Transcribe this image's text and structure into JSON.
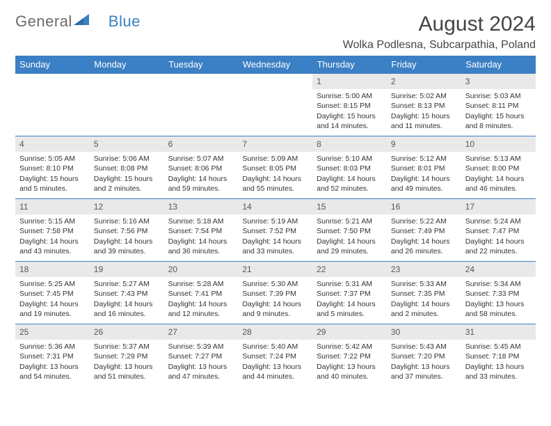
{
  "logo": {
    "text1": "General",
    "text2": "Blue"
  },
  "title": "August 2024",
  "subtitle": "Wolka Podlesna, Subcarpathia, Poland",
  "colors": {
    "header_bg": "#3b7fc4",
    "header_text": "#ffffff",
    "daynum_bg": "#e9e9e9",
    "border": "#3b7fc4",
    "text": "#333333",
    "logo_gray": "#6b6b6b",
    "logo_blue": "#3b7fc4"
  },
  "fonts": {
    "title_size_pt": 22,
    "subtitle_size_pt": 12,
    "header_size_pt": 10,
    "cell_size_pt": 8
  },
  "days_of_week": [
    "Sunday",
    "Monday",
    "Tuesday",
    "Wednesday",
    "Thursday",
    "Friday",
    "Saturday"
  ],
  "weeks": [
    [
      null,
      null,
      null,
      null,
      {
        "n": "1",
        "sr": "Sunrise: 5:00 AM",
        "ss": "Sunset: 8:15 PM",
        "dl": "Daylight: 15 hours and 14 minutes."
      },
      {
        "n": "2",
        "sr": "Sunrise: 5:02 AM",
        "ss": "Sunset: 8:13 PM",
        "dl": "Daylight: 15 hours and 11 minutes."
      },
      {
        "n": "3",
        "sr": "Sunrise: 5:03 AM",
        "ss": "Sunset: 8:11 PM",
        "dl": "Daylight: 15 hours and 8 minutes."
      }
    ],
    [
      {
        "n": "4",
        "sr": "Sunrise: 5:05 AM",
        "ss": "Sunset: 8:10 PM",
        "dl": "Daylight: 15 hours and 5 minutes."
      },
      {
        "n": "5",
        "sr": "Sunrise: 5:06 AM",
        "ss": "Sunset: 8:08 PM",
        "dl": "Daylight: 15 hours and 2 minutes."
      },
      {
        "n": "6",
        "sr": "Sunrise: 5:07 AM",
        "ss": "Sunset: 8:06 PM",
        "dl": "Daylight: 14 hours and 59 minutes."
      },
      {
        "n": "7",
        "sr": "Sunrise: 5:09 AM",
        "ss": "Sunset: 8:05 PM",
        "dl": "Daylight: 14 hours and 55 minutes."
      },
      {
        "n": "8",
        "sr": "Sunrise: 5:10 AM",
        "ss": "Sunset: 8:03 PM",
        "dl": "Daylight: 14 hours and 52 minutes."
      },
      {
        "n": "9",
        "sr": "Sunrise: 5:12 AM",
        "ss": "Sunset: 8:01 PM",
        "dl": "Daylight: 14 hours and 49 minutes."
      },
      {
        "n": "10",
        "sr": "Sunrise: 5:13 AM",
        "ss": "Sunset: 8:00 PM",
        "dl": "Daylight: 14 hours and 46 minutes."
      }
    ],
    [
      {
        "n": "11",
        "sr": "Sunrise: 5:15 AM",
        "ss": "Sunset: 7:58 PM",
        "dl": "Daylight: 14 hours and 43 minutes."
      },
      {
        "n": "12",
        "sr": "Sunrise: 5:16 AM",
        "ss": "Sunset: 7:56 PM",
        "dl": "Daylight: 14 hours and 39 minutes."
      },
      {
        "n": "13",
        "sr": "Sunrise: 5:18 AM",
        "ss": "Sunset: 7:54 PM",
        "dl": "Daylight: 14 hours and 36 minutes."
      },
      {
        "n": "14",
        "sr": "Sunrise: 5:19 AM",
        "ss": "Sunset: 7:52 PM",
        "dl": "Daylight: 14 hours and 33 minutes."
      },
      {
        "n": "15",
        "sr": "Sunrise: 5:21 AM",
        "ss": "Sunset: 7:50 PM",
        "dl": "Daylight: 14 hours and 29 minutes."
      },
      {
        "n": "16",
        "sr": "Sunrise: 5:22 AM",
        "ss": "Sunset: 7:49 PM",
        "dl": "Daylight: 14 hours and 26 minutes."
      },
      {
        "n": "17",
        "sr": "Sunrise: 5:24 AM",
        "ss": "Sunset: 7:47 PM",
        "dl": "Daylight: 14 hours and 22 minutes."
      }
    ],
    [
      {
        "n": "18",
        "sr": "Sunrise: 5:25 AM",
        "ss": "Sunset: 7:45 PM",
        "dl": "Daylight: 14 hours and 19 minutes."
      },
      {
        "n": "19",
        "sr": "Sunrise: 5:27 AM",
        "ss": "Sunset: 7:43 PM",
        "dl": "Daylight: 14 hours and 16 minutes."
      },
      {
        "n": "20",
        "sr": "Sunrise: 5:28 AM",
        "ss": "Sunset: 7:41 PM",
        "dl": "Daylight: 14 hours and 12 minutes."
      },
      {
        "n": "21",
        "sr": "Sunrise: 5:30 AM",
        "ss": "Sunset: 7:39 PM",
        "dl": "Daylight: 14 hours and 9 minutes."
      },
      {
        "n": "22",
        "sr": "Sunrise: 5:31 AM",
        "ss": "Sunset: 7:37 PM",
        "dl": "Daylight: 14 hours and 5 minutes."
      },
      {
        "n": "23",
        "sr": "Sunrise: 5:33 AM",
        "ss": "Sunset: 7:35 PM",
        "dl": "Daylight: 14 hours and 2 minutes."
      },
      {
        "n": "24",
        "sr": "Sunrise: 5:34 AM",
        "ss": "Sunset: 7:33 PM",
        "dl": "Daylight: 13 hours and 58 minutes."
      }
    ],
    [
      {
        "n": "25",
        "sr": "Sunrise: 5:36 AM",
        "ss": "Sunset: 7:31 PM",
        "dl": "Daylight: 13 hours and 54 minutes."
      },
      {
        "n": "26",
        "sr": "Sunrise: 5:37 AM",
        "ss": "Sunset: 7:29 PM",
        "dl": "Daylight: 13 hours and 51 minutes."
      },
      {
        "n": "27",
        "sr": "Sunrise: 5:39 AM",
        "ss": "Sunset: 7:27 PM",
        "dl": "Daylight: 13 hours and 47 minutes."
      },
      {
        "n": "28",
        "sr": "Sunrise: 5:40 AM",
        "ss": "Sunset: 7:24 PM",
        "dl": "Daylight: 13 hours and 44 minutes."
      },
      {
        "n": "29",
        "sr": "Sunrise: 5:42 AM",
        "ss": "Sunset: 7:22 PM",
        "dl": "Daylight: 13 hours and 40 minutes."
      },
      {
        "n": "30",
        "sr": "Sunrise: 5:43 AM",
        "ss": "Sunset: 7:20 PM",
        "dl": "Daylight: 13 hours and 37 minutes."
      },
      {
        "n": "31",
        "sr": "Sunrise: 5:45 AM",
        "ss": "Sunset: 7:18 PM",
        "dl": "Daylight: 13 hours and 33 minutes."
      }
    ]
  ]
}
